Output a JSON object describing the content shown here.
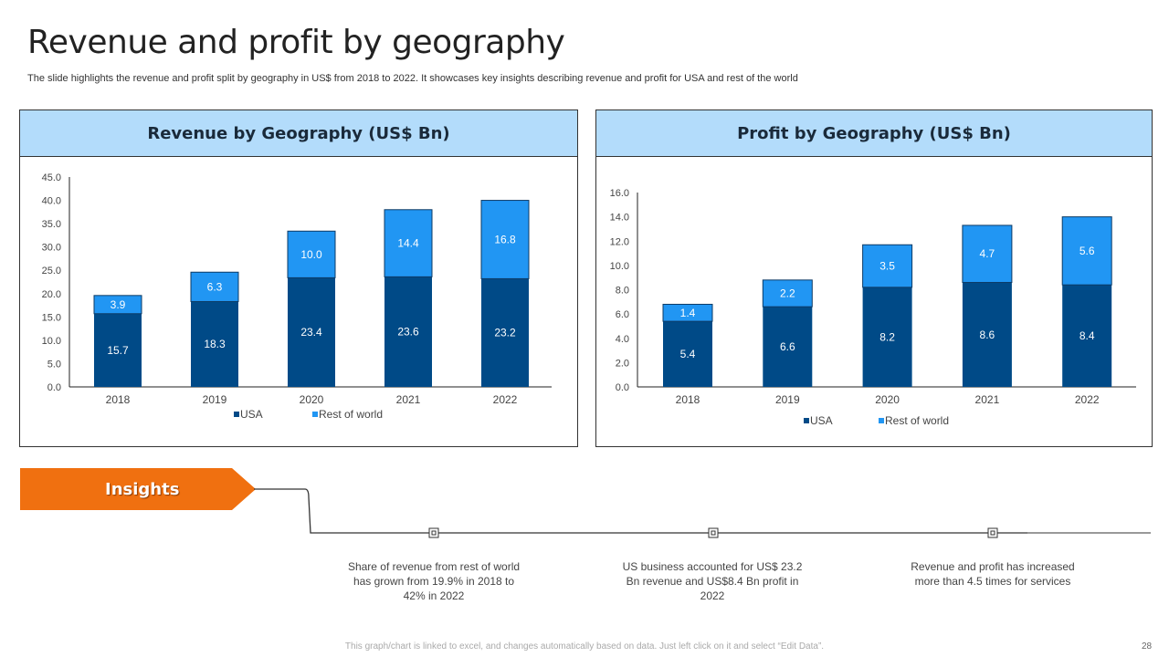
{
  "title": "Revenue and profit by geography",
  "subtitle": "The slide highlights the revenue and profit split by geography in US$ from 2018 to 2022. It showcases key insights describing revenue and profit for USA and rest of the world",
  "colors": {
    "usa": "#004a87",
    "rest_of_world": "#2196f3",
    "header_bg": "#b3dcfb",
    "insights": "#f07010"
  },
  "chart_data": [
    {
      "type": "bar",
      "stacked": true,
      "title": "Revenue by Geography (US$ Bn)",
      "categories": [
        "2018",
        "2019",
        "2020",
        "2021",
        "2022"
      ],
      "series": [
        {
          "name": "USA",
          "values": [
            15.7,
            18.3,
            23.4,
            23.6,
            23.2
          ]
        },
        {
          "name": "Rest of world",
          "values": [
            3.9,
            6.3,
            10.0,
            14.4,
            16.8
          ]
        }
      ],
      "ylim": [
        0,
        45
      ],
      "yticks": [
        "0.0",
        "5.0",
        "10.0",
        "15.0",
        "20.0",
        "25.0",
        "30.0",
        "35.0",
        "40.0",
        "45.0"
      ],
      "legend": "bottom",
      "grid": false
    },
    {
      "type": "bar",
      "stacked": true,
      "title": "Profit by Geography (US$ Bn)",
      "categories": [
        "2018",
        "2019",
        "2020",
        "2021",
        "2022"
      ],
      "series": [
        {
          "name": "USA",
          "values": [
            5.4,
            6.6,
            8.2,
            8.6,
            8.4
          ]
        },
        {
          "name": "Rest of world",
          "values": [
            1.4,
            2.2,
            3.5,
            4.7,
            5.6
          ]
        }
      ],
      "ylim": [
        0,
        16
      ],
      "yticks": [
        "0.0",
        "2.0",
        "4.0",
        "6.0",
        "8.0",
        "10.0",
        "12.0",
        "14.0",
        "16.0"
      ],
      "legend": "bottom",
      "grid": false
    }
  ],
  "insights": {
    "label": "Insights",
    "items": [
      "Share of revenue from rest of world has grown from 19.9% in 2018 to 42% in 2022",
      "US business accounted for US$ 23.2 Bn revenue and US$8.4 Bn profit in 2022",
      "Revenue and profit has increased more than 4.5 times for services"
    ]
  },
  "footer": "This graph/chart is linked to excel, and changes automatically based on data. Just left click on it and select “Edit Data”.",
  "page_number": "28"
}
